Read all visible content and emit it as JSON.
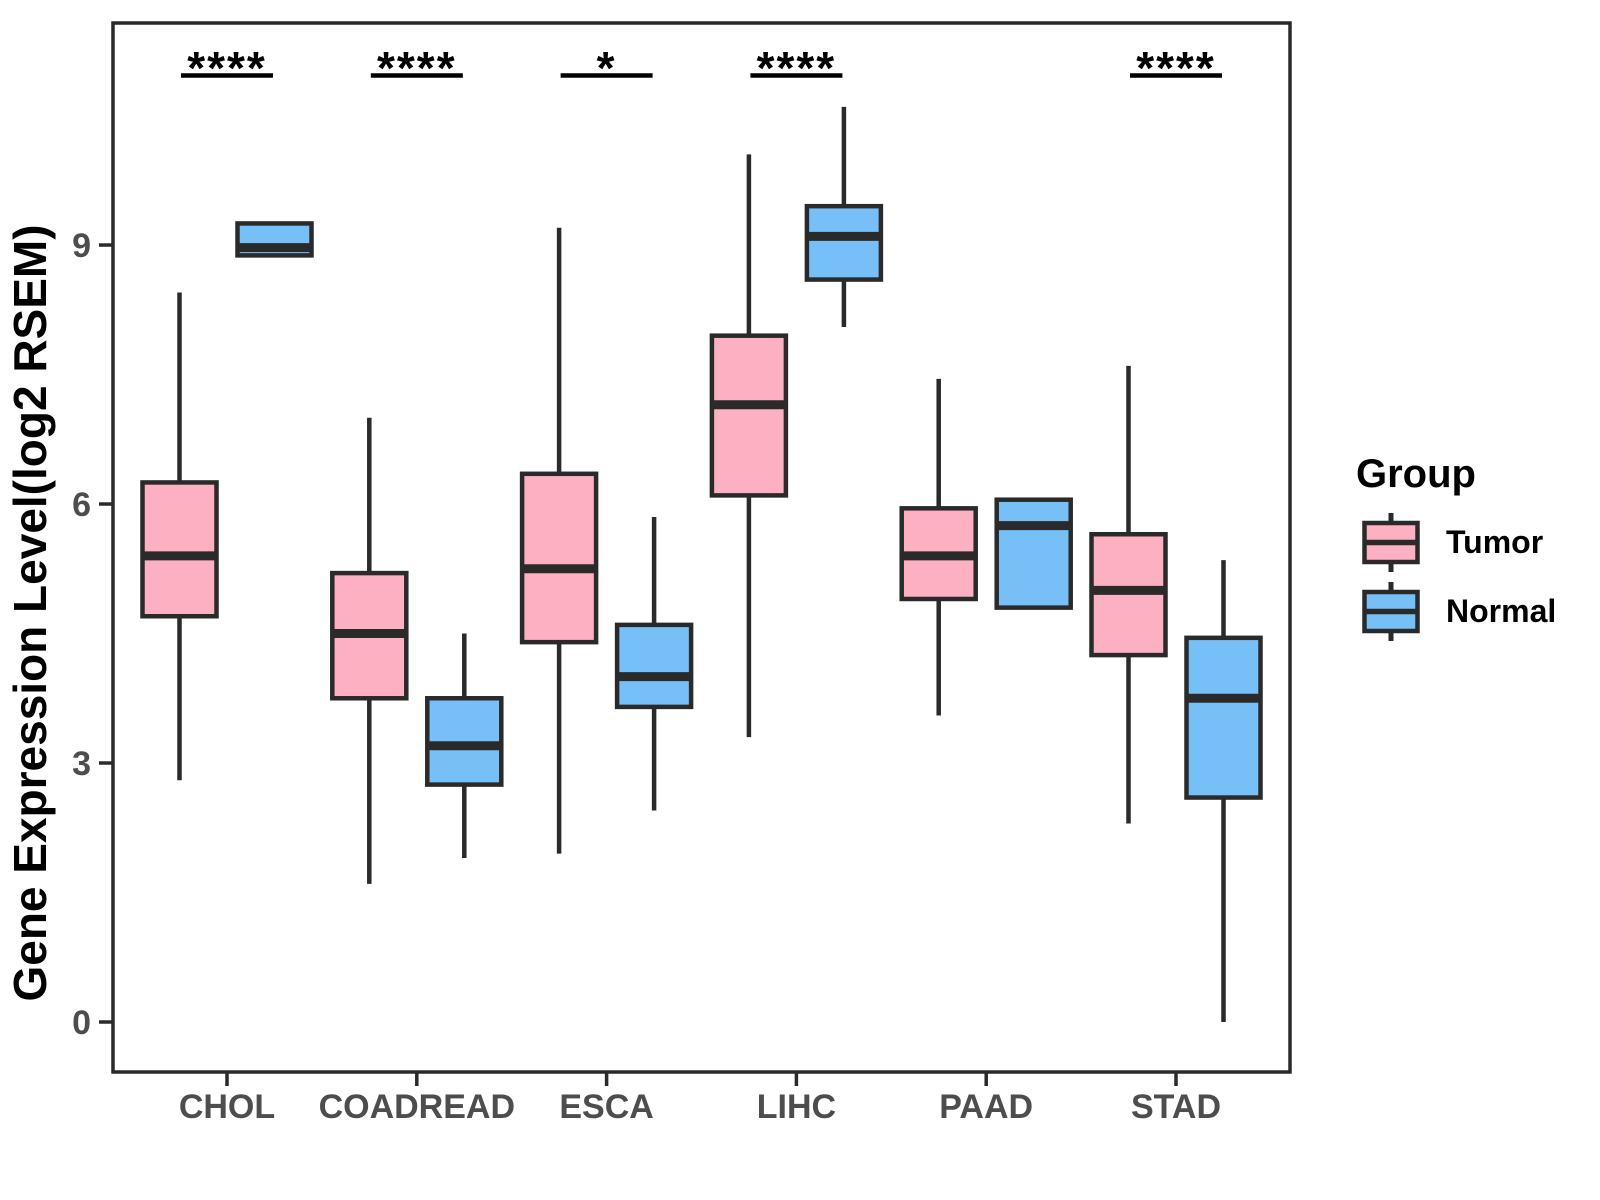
{
  "figure": {
    "y_axis_title": "Gene Expression Level(log2 RSEM)"
  },
  "legend": {
    "title": "Group",
    "items": [
      {
        "label": "Tumor",
        "color": "#FCB0C1"
      },
      {
        "label": "Normal",
        "color": "#77C0F7"
      }
    ]
  },
  "colors": {
    "tumor": "#FCB0C1",
    "normal": "#77C0F7",
    "stroke": "#2A2A2A",
    "tick_text": "#4D4D4D"
  },
  "chart_data": {
    "type": "boxplot",
    "title": "",
    "xlabel": "",
    "ylabel": "Gene Expression Level(log2 RSEM)",
    "ylim": [
      0,
      11
    ],
    "y_ticks": [
      0,
      3,
      6,
      9
    ],
    "grid": false,
    "legend_position": "right",
    "categories": [
      "CHOL",
      "COADREAD",
      "ESCA",
      "LIHC",
      "PAAD",
      "STAD"
    ],
    "groups": [
      "Tumor",
      "Normal"
    ],
    "significance": [
      "****",
      "****",
      "*",
      "****",
      "",
      "****"
    ],
    "series": [
      {
        "name": "Tumor",
        "color": "#FCB0C1",
        "boxes": [
          {
            "category": "CHOL",
            "whisker_low": 2.8,
            "q1": 4.7,
            "median": 5.4,
            "q3": 6.25,
            "whisker_high": 8.45
          },
          {
            "category": "COADREAD",
            "whisker_low": 1.6,
            "q1": 3.75,
            "median": 4.5,
            "q3": 5.2,
            "whisker_high": 7.0
          },
          {
            "category": "ESCA",
            "whisker_low": 1.95,
            "q1": 4.4,
            "median": 5.25,
            "q3": 6.35,
            "whisker_high": 9.2
          },
          {
            "category": "LIHC",
            "whisker_low": 3.3,
            "q1": 6.1,
            "median": 7.15,
            "q3": 7.95,
            "whisker_high": 10.05
          },
          {
            "category": "PAAD",
            "whisker_low": 3.55,
            "q1": 4.9,
            "median": 5.4,
            "q3": 5.95,
            "whisker_high": 7.45
          },
          {
            "category": "STAD",
            "whisker_low": 2.3,
            "q1": 4.25,
            "median": 5.0,
            "q3": 5.65,
            "whisker_high": 7.6
          }
        ]
      },
      {
        "name": "Normal",
        "color": "#77C0F7",
        "boxes": [
          {
            "category": "CHOL",
            "whisker_low": 8.88,
            "q1": 8.88,
            "median": 8.97,
            "q3": 9.25,
            "whisker_high": 9.25
          },
          {
            "category": "COADREAD",
            "whisker_low": 1.9,
            "q1": 2.75,
            "median": 3.2,
            "q3": 3.75,
            "whisker_high": 4.5
          },
          {
            "category": "ESCA",
            "whisker_low": 2.45,
            "q1": 3.65,
            "median": 4.0,
            "q3": 4.6,
            "whisker_high": 5.85
          },
          {
            "category": "LIHC",
            "whisker_low": 8.05,
            "q1": 8.6,
            "median": 9.1,
            "q3": 9.45,
            "whisker_high": 10.6
          },
          {
            "category": "PAAD",
            "whisker_low": 4.8,
            "q1": 4.8,
            "median": 5.75,
            "q3": 6.05,
            "whisker_high": 6.05
          },
          {
            "category": "STAD",
            "whisker_low": 0.0,
            "q1": 2.6,
            "median": 3.75,
            "q3": 4.45,
            "whisker_high": 5.35
          }
        ]
      }
    ]
  }
}
